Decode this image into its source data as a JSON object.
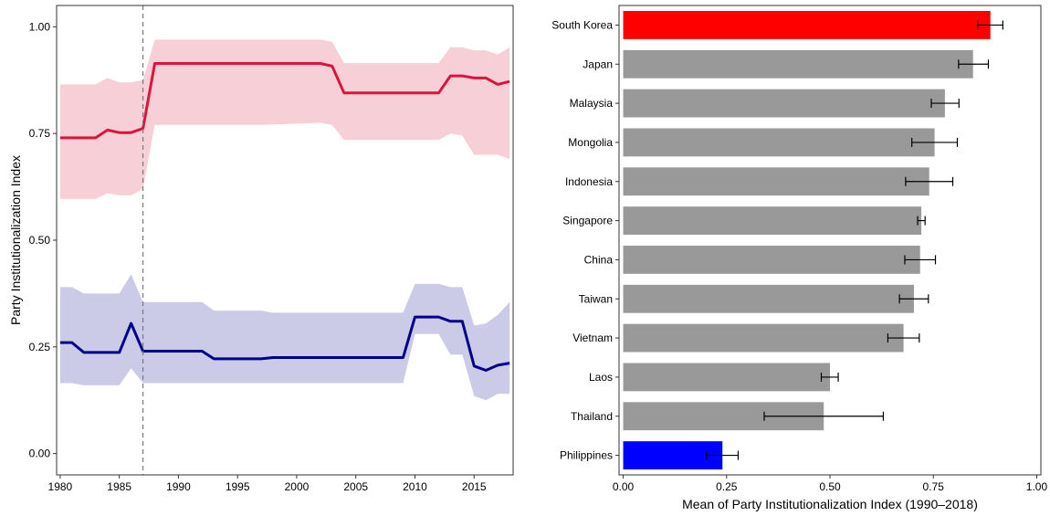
{
  "chart_data": [
    {
      "type": "line",
      "title": "",
      "xlabel": "",
      "ylabel": "Party Institutionalization Index",
      "xlim": [
        1979.7,
        2018.3
      ],
      "ylim": [
        -0.05,
        1.05
      ],
      "x_ticks": [
        1980,
        1985,
        1990,
        1995,
        2000,
        2005,
        2010,
        2015
      ],
      "y_ticks": [
        0.0,
        0.25,
        0.5,
        0.75,
        1.0
      ],
      "x_tick_labels": [
        "1980",
        "1985",
        "1990",
        "1995",
        "2000",
        "2005",
        "2010",
        "2015"
      ],
      "y_tick_labels": [
        "0.00",
        "0.25",
        "0.50",
        "0.75",
        "1.00"
      ],
      "grid": false,
      "reference_line": {
        "x": 1987,
        "style": "dashed"
      },
      "series": [
        {
          "color": "#dc143c",
          "band_color": "#f7d0d7",
          "x": [
            1980,
            1981,
            1982,
            1983,
            1984,
            1985,
            1986,
            1987,
            1988,
            1997,
            2002,
            2003,
            2004,
            2009,
            2012,
            2013,
            2014,
            2015,
            2016,
            2017,
            2018
          ],
          "y": [
            0.74,
            0.74,
            0.74,
            0.74,
            0.758,
            0.752,
            0.752,
            0.762,
            0.914,
            0.914,
            0.914,
            0.908,
            0.845,
            0.845,
            0.845,
            0.885,
            0.885,
            0.88,
            0.88,
            0.865,
            0.872
          ],
          "lower": [
            0.597,
            0.597,
            0.597,
            0.597,
            0.61,
            0.605,
            0.605,
            0.62,
            0.77,
            0.77,
            0.775,
            0.77,
            0.735,
            0.735,
            0.735,
            0.75,
            0.745,
            0.7,
            0.7,
            0.7,
            0.69
          ],
          "upper": [
            0.865,
            0.865,
            0.865,
            0.865,
            0.88,
            0.87,
            0.87,
            0.875,
            0.97,
            0.97,
            0.97,
            0.965,
            0.915,
            0.915,
            0.915,
            0.952,
            0.952,
            0.945,
            0.945,
            0.935,
            0.952
          ]
        },
        {
          "color": "#00008b",
          "band_color": "#cbcbe8",
          "x": [
            1980,
            1981,
            1982,
            1983,
            1984,
            1985,
            1986,
            1987,
            1992,
            1993,
            1997,
            1998,
            2009,
            2010,
            2012,
            2013,
            2014,
            2015,
            2016,
            2017,
            2018
          ],
          "y": [
            0.26,
            0.26,
            0.237,
            0.237,
            0.237,
            0.237,
            0.305,
            0.24,
            0.24,
            0.222,
            0.222,
            0.225,
            0.225,
            0.32,
            0.32,
            0.31,
            0.31,
            0.205,
            0.195,
            0.207,
            0.212
          ],
          "lower": [
            0.165,
            0.165,
            0.16,
            0.16,
            0.16,
            0.16,
            0.2,
            0.165,
            0.165,
            0.165,
            0.165,
            0.165,
            0.165,
            0.28,
            0.28,
            0.232,
            0.232,
            0.135,
            0.125,
            0.14,
            0.14
          ],
          "upper": [
            0.39,
            0.39,
            0.375,
            0.375,
            0.375,
            0.375,
            0.42,
            0.355,
            0.355,
            0.335,
            0.335,
            0.33,
            0.33,
            0.398,
            0.398,
            0.39,
            0.39,
            0.3,
            0.305,
            0.325,
            0.355
          ]
        }
      ]
    },
    {
      "type": "bar",
      "orientation": "horizontal",
      "title": "",
      "xlabel": "Mean of Party Institutionalization Index (1990–2018)",
      "ylabel": "",
      "xlim": [
        -0.01,
        1.01
      ],
      "x_ticks": [
        0.0,
        0.25,
        0.5,
        0.75,
        1.0
      ],
      "x_tick_labels": [
        "0.00",
        "0.25",
        "0.50",
        "0.75",
        "1.00"
      ],
      "grid": false,
      "categories": [
        "South Korea",
        "Japan",
        "Malaysia",
        "Mongolia",
        "Indonesia",
        "Singapore",
        "China",
        "Taiwan",
        "Vietnam",
        "Laos",
        "Thailand",
        "Philippines"
      ],
      "values": [
        0.888,
        0.846,
        0.778,
        0.753,
        0.74,
        0.721,
        0.718,
        0.703,
        0.678,
        0.5,
        0.485,
        0.24
      ],
      "error_low": [
        0.857,
        0.811,
        0.745,
        0.698,
        0.683,
        0.712,
        0.681,
        0.668,
        0.64,
        0.479,
        0.341,
        0.202
      ],
      "error_high": [
        0.918,
        0.883,
        0.812,
        0.808,
        0.797,
        0.73,
        0.755,
        0.738,
        0.716,
        0.52,
        0.629,
        0.278
      ],
      "colors": [
        "#ff0000",
        "#999999",
        "#999999",
        "#999999",
        "#999999",
        "#999999",
        "#999999",
        "#999999",
        "#999999",
        "#999999",
        "#999999",
        "#0000ff"
      ]
    }
  ]
}
